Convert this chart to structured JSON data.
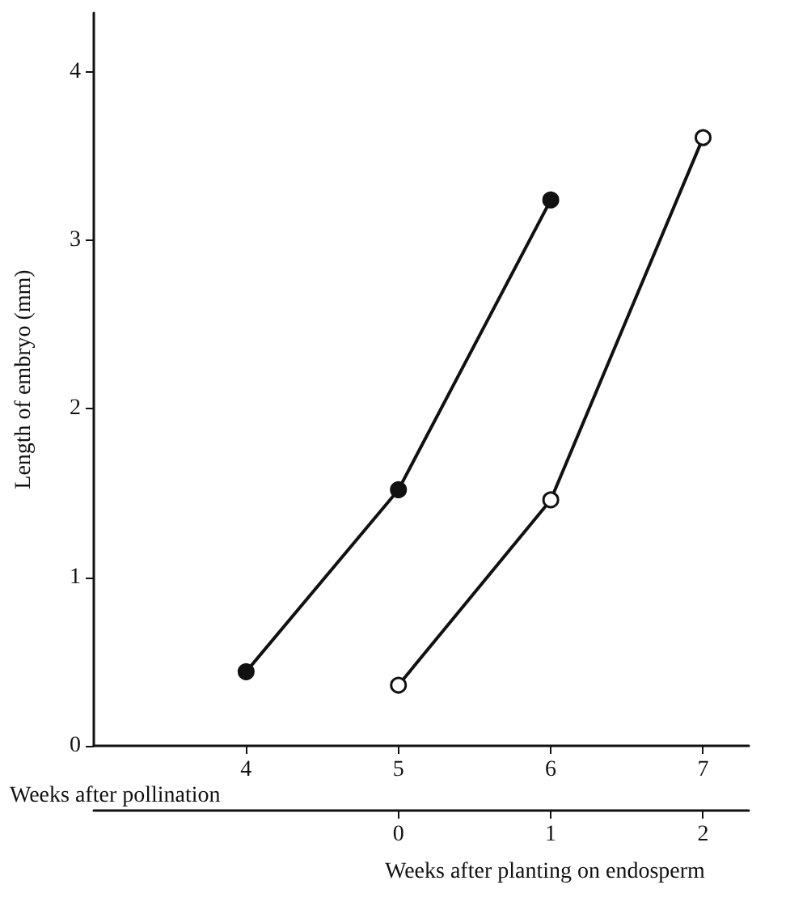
{
  "chart_data": {
    "type": "line",
    "ylabel": "Length of embryo (mm)",
    "xlabel": "Weeks after pollination",
    "x2label": "Weeks after planting on endosperm",
    "xlim": [
      3,
      7.3
    ],
    "xticks": [
      4,
      5,
      6,
      7
    ],
    "x2lim": [
      -2,
      2.3
    ],
    "x2ticks": [
      0,
      1,
      2
    ],
    "ylim": [
      0,
      4.35
    ],
    "yticks": [
      0,
      1,
      2,
      3,
      4
    ],
    "series": [
      {
        "color": "#111111",
        "marker": "circle",
        "x": [
          4,
          5,
          6
        ],
        "values": [
          0.44,
          1.52,
          3.24
        ]
      },
      {
        "color": "#111111",
        "marker": "circle",
        "axis": "x2",
        "x": [
          0,
          1,
          2
        ],
        "values": [
          0.36,
          1.46,
          3.61
        ]
      }
    ],
    "grid": false
  }
}
